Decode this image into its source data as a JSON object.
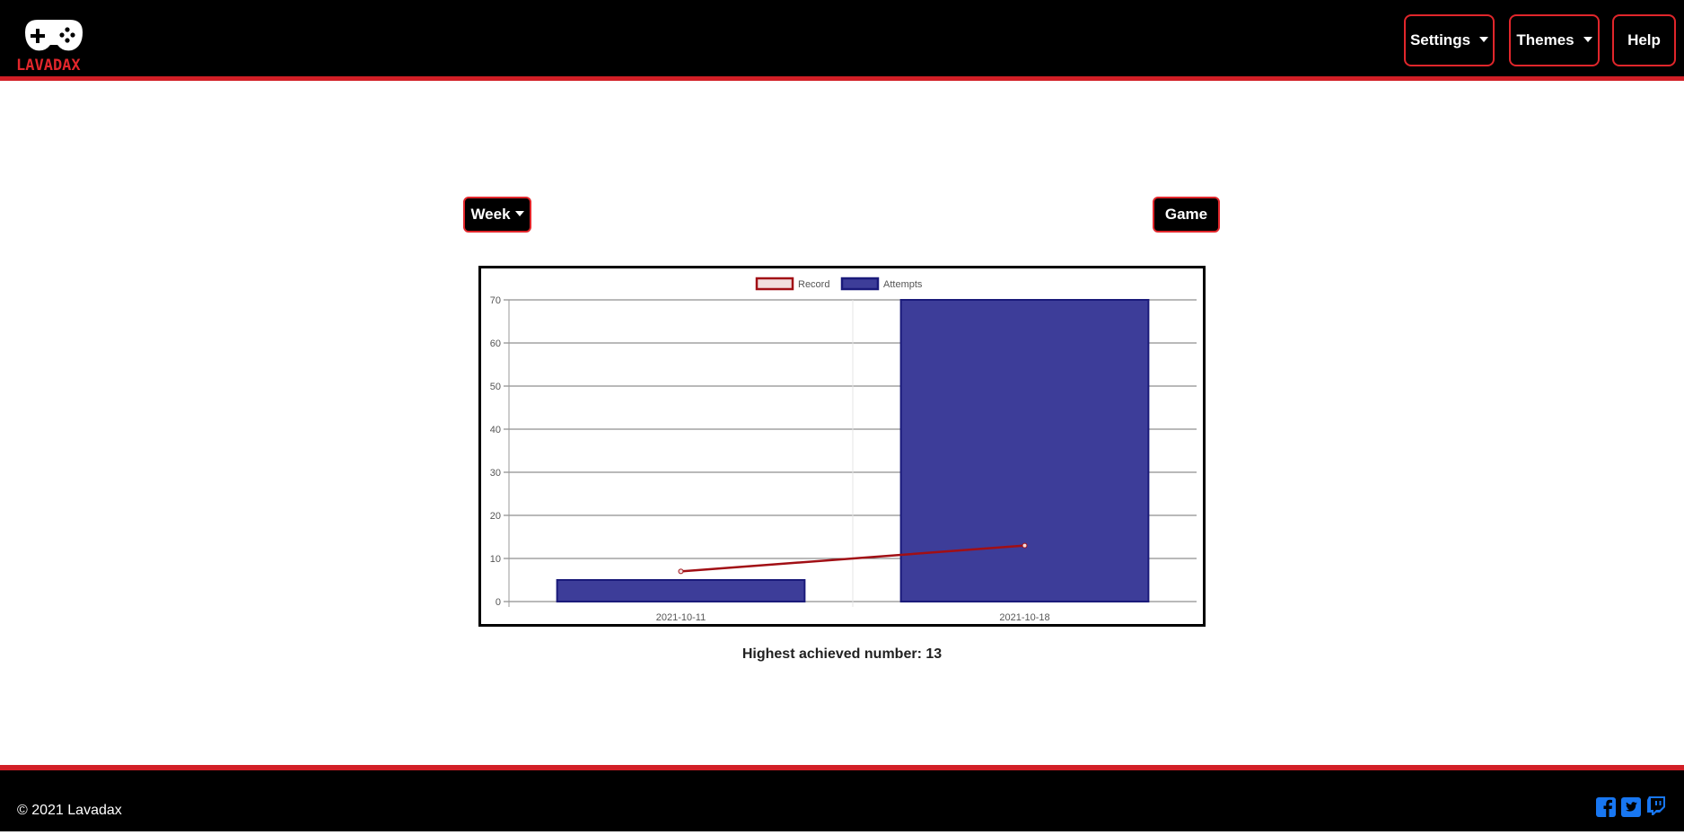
{
  "header": {
    "logo_text": "LAVADAX",
    "nav": {
      "settings_label": "Settings",
      "themes_label": "Themes",
      "help_label": "Help"
    }
  },
  "controls": {
    "period_label": "Week",
    "game_label": "Game"
  },
  "chart_data": {
    "type": "bar",
    "categories": [
      "2021-10-11",
      "2021-10-18"
    ],
    "series": [
      {
        "name": "Attempts",
        "type": "bar",
        "values": [
          5,
          70
        ],
        "color": "#3d3d99",
        "border": "#1a1a7a"
      },
      {
        "name": "Record",
        "type": "line",
        "values": [
          7,
          13
        ],
        "color": "#a10f15"
      }
    ],
    "ylim": [
      0,
      70
    ],
    "yticks": [
      0,
      10,
      20,
      30,
      40,
      50,
      60,
      70
    ],
    "legend_position": "top",
    "grid": true
  },
  "summary": {
    "highest_text": "Highest achieved number: 13"
  },
  "footer": {
    "copyright": "© 2021 Lavadax",
    "social_icons": [
      "facebook-icon",
      "twitter-icon",
      "twitch-icon"
    ]
  },
  "colors": {
    "accent": "#e1262b",
    "social": "#1877f2",
    "bar_fill": "#3d3d99",
    "line": "#a10f15"
  }
}
